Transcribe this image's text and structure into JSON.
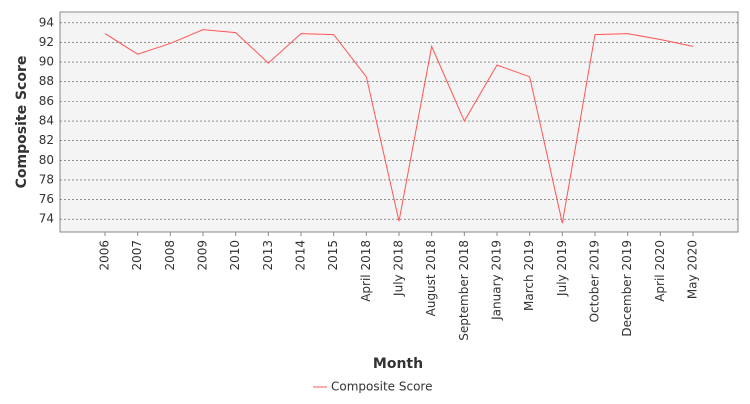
{
  "chart_data": {
    "type": "line",
    "x_label": "Month",
    "y_label": "Composite Score",
    "categories": [
      "2006",
      "2007",
      "2008",
      "2009",
      "2010",
      "2013",
      "2014",
      "2015",
      "April 2018",
      "July 2018",
      "August 2018",
      "September 2018",
      "January 2019",
      "March 2019",
      "July 2019",
      "October 2019",
      "December 2019",
      "April 2020",
      "May 2020"
    ],
    "series": [
      {
        "name": "Composite Score",
        "color": "#ff5555",
        "values": [
          92.9,
          90.8,
          91.9,
          93.3,
          93.0,
          89.9,
          92.9,
          92.8,
          88.5,
          73.8,
          91.6,
          84.0,
          89.7,
          88.5,
          73.6,
          92.8,
          92.9,
          92.3,
          91.6
        ]
      }
    ],
    "ylim": [
      72.7,
      95.1
    ],
    "yticks": [
      74,
      76,
      78,
      80,
      82,
      84,
      86,
      88,
      90,
      92,
      94
    ],
    "grid": true,
    "legend": "bottom"
  }
}
